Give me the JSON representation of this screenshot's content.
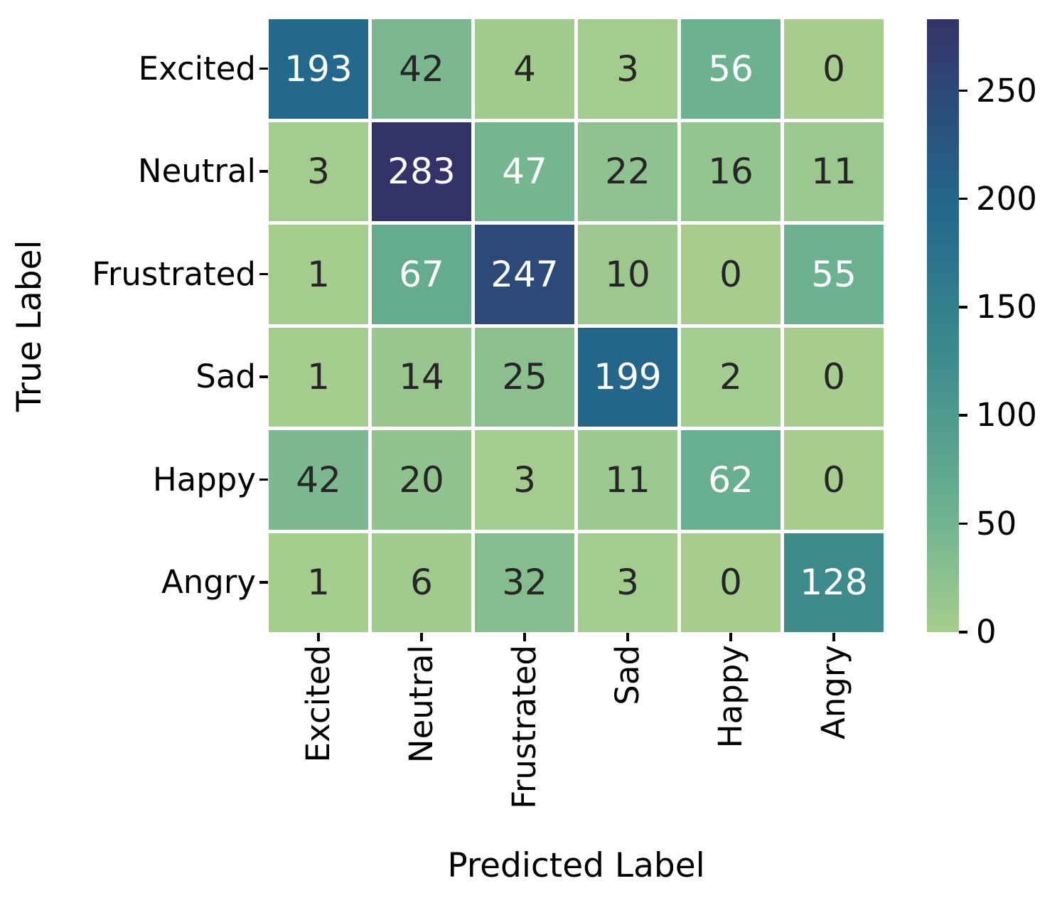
{
  "chart_data": {
    "type": "heatmap",
    "title": "",
    "xlabel": "Predicted Label",
    "ylabel": "True Label",
    "x_categories": [
      "Excited",
      "Neutral",
      "Frustrated",
      "Sad",
      "Happy",
      "Angry"
    ],
    "y_categories": [
      "Excited",
      "Neutral",
      "Frustrated",
      "Sad",
      "Happy",
      "Angry"
    ],
    "matrix": [
      [
        193,
        42,
        4,
        3,
        56,
        0
      ],
      [
        3,
        283,
        47,
        22,
        16,
        11
      ],
      [
        1,
        67,
        247,
        10,
        0,
        55
      ],
      [
        1,
        14,
        25,
        199,
        2,
        0
      ],
      [
        42,
        20,
        3,
        11,
        62,
        0
      ],
      [
        1,
        6,
        32,
        3,
        0,
        128
      ]
    ],
    "vmin": 0,
    "vmax": 283,
    "colorbar": {
      "position": "right",
      "ticks": [
        0,
        50,
        100,
        150,
        200,
        250
      ]
    },
    "colormap": {
      "name": "crest",
      "stops": [
        {
          "t": 0.0,
          "color": "#a6cd8e"
        },
        {
          "t": 0.198,
          "color": "#6cb190"
        },
        {
          "t": 0.452,
          "color": "#3d8a8d"
        },
        {
          "t": 0.682,
          "color": "#23698c"
        },
        {
          "t": 0.873,
          "color": "#2c4a78"
        },
        {
          "t": 1.0,
          "color": "#333369"
        }
      ]
    },
    "annotation_style": {
      "light_text_color": "#ffffff",
      "dark_text_color": "#262626",
      "white_text_min_value": 45
    },
    "layout": {
      "background": "#ffffff",
      "tick_color": "#000000",
      "cell_gap_color": "#ffffff",
      "grid": false,
      "legend": false
    }
  }
}
